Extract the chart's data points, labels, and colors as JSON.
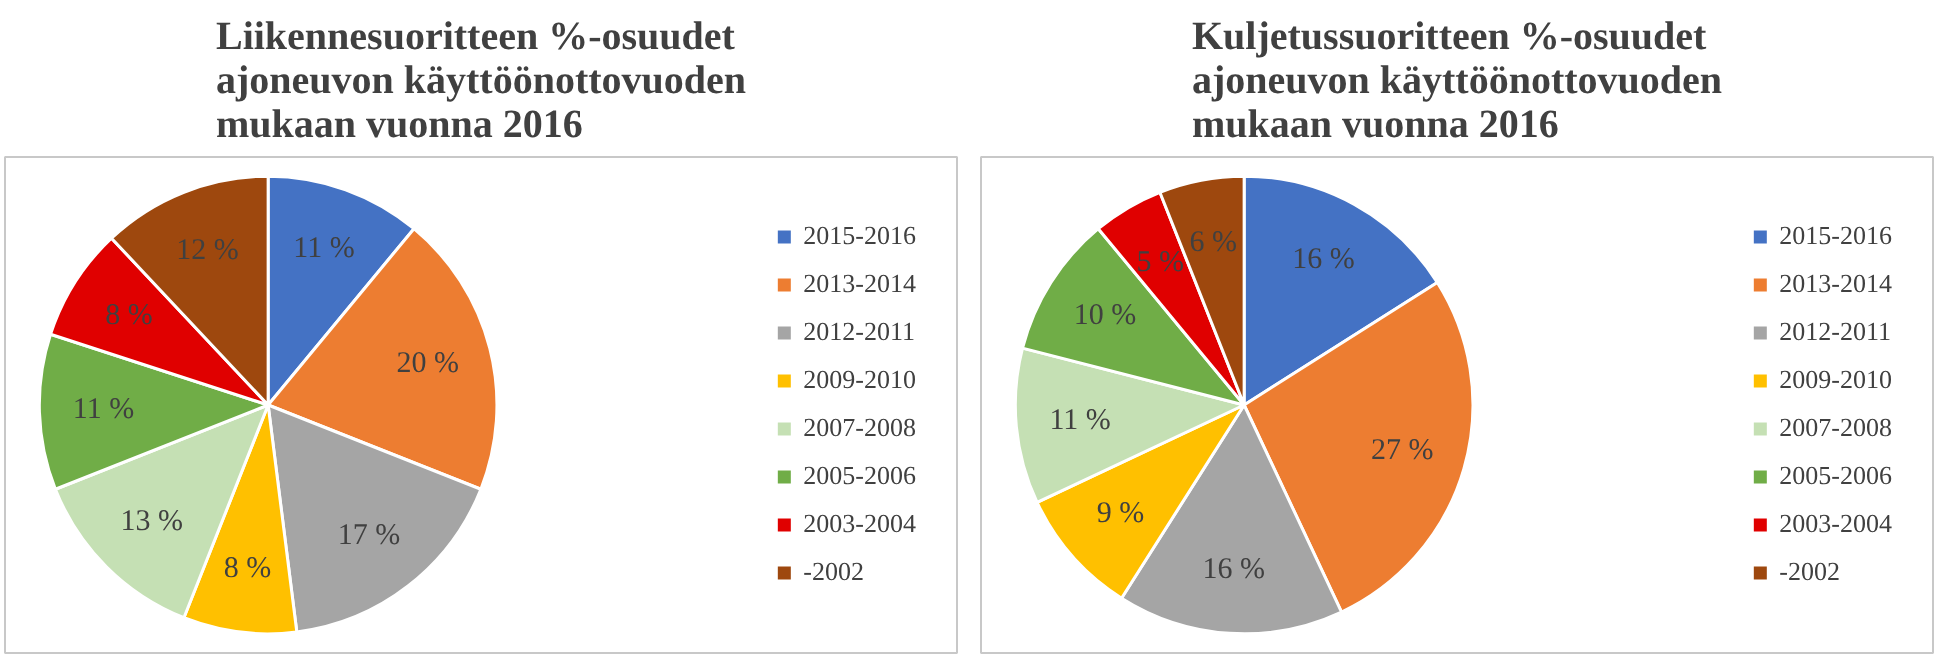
{
  "chart_data": [
    {
      "type": "pie",
      "title": "Liikennesuoritteen %-osuudet ajoneuvon käyttöönottovuoden mukaan vuonna 2016",
      "categories": [
        "2015-2016",
        "2013-2014",
        "2012-2011",
        "2009-2010",
        "2007-2008",
        "2005-2006",
        "2003-2004",
        "-2002"
      ],
      "values": [
        11,
        20,
        17,
        8,
        13,
        11,
        8,
        12
      ],
      "value_labels": [
        "11 %",
        "20 %",
        "17 %",
        "8 %",
        "13 %",
        "11 %",
        "8 %",
        "12 %"
      ],
      "colors": [
        "#4472c4",
        "#ed7d31",
        "#a5a5a5",
        "#ffc000",
        "#c5e0b4",
        "#70ad47",
        "#e00000",
        "#9e480e"
      ],
      "legend": "right"
    },
    {
      "type": "pie",
      "title": "Kuljetussuoritteen %-osuudet ajoneuvon käyttöönottovuoden mukaan vuonna 2016",
      "categories": [
        "2015-2016",
        "2013-2014",
        "2012-2011",
        "2009-2010",
        "2007-2008",
        "2005-2006",
        "2003-2004",
        "-2002"
      ],
      "values": [
        16,
        27,
        16,
        9,
        11,
        10,
        5,
        6
      ],
      "value_labels": [
        "16 %",
        "27 %",
        "16 %",
        "9 %",
        "11 %",
        "10 %",
        "5 %",
        "6 %"
      ],
      "colors": [
        "#4472c4",
        "#ed7d31",
        "#a5a5a5",
        "#ffc000",
        "#c5e0b4",
        "#70ad47",
        "#e00000",
        "#9e480e"
      ],
      "legend": "right"
    }
  ]
}
